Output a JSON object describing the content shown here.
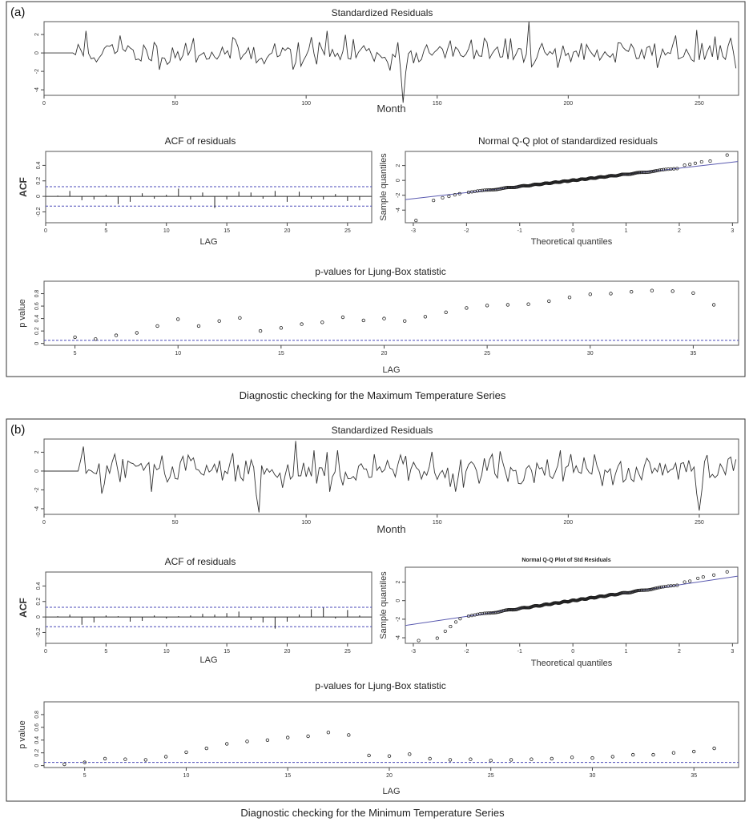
{
  "panels": [
    {
      "label": "(a)",
      "caption": "Diagnostic checking for the Maximum Temperature Series",
      "residuals_title": "Standardized Residuals",
      "acf_title": "ACF of residuals",
      "qq_title": "Normal Q-Q plot of standardized residuals",
      "lb_title": "p-values for Ljung-Box statistic"
    },
    {
      "label": "(b)",
      "caption": "Diagnostic checking for the  Minimum Temperature Series",
      "residuals_title": "Standardized Residuals",
      "acf_title": "ACF of residuals",
      "qq_title": "Normal Q-Q Plot of Std Residuals",
      "lb_title": "p-values for Ljung-Box statistic"
    }
  ],
  "chart_data": [
    {
      "id": "a-residuals",
      "type": "line",
      "title": "Standardized Residuals",
      "xlabel": "Month",
      "ylabel": "",
      "xlim": [
        0,
        265
      ],
      "ylim": [
        -4.6,
        3.4
      ],
      "xticks": [
        0,
        50,
        100,
        150,
        200,
        250
      ],
      "yticks": [
        -4,
        -2,
        0,
        2
      ],
      "n": 265,
      "flat_until": 12,
      "noise_sd": 0.72,
      "seed": 11,
      "spikes": [
        [
          16,
          2.4
        ],
        [
          29,
          1.9
        ],
        [
          57,
          1.6
        ],
        [
          95,
          -1.8
        ],
        [
          108,
          2.4
        ],
        [
          118,
          1.5
        ],
        [
          132,
          -1.9
        ],
        [
          137,
          -5.4
        ],
        [
          138,
          -2.1
        ],
        [
          168,
          1.6
        ],
        [
          185,
          3.4
        ],
        [
          186,
          -1.5
        ],
        [
          241,
          1.9
        ],
        [
          249,
          2.5
        ]
      ]
    },
    {
      "id": "a-acf",
      "type": "bar",
      "title": "ACF of residuals",
      "xlabel": "LAG",
      "ylabel": "ACF",
      "xlim": [
        0,
        27
      ],
      "ylim": [
        -0.34,
        0.58
      ],
      "xticks": [
        0,
        5,
        10,
        15,
        20,
        25
      ],
      "yticks": [
        -0.2,
        0.0,
        0.2,
        0.4
      ],
      "conf_band": 0.125,
      "lags": [
        1,
        2,
        3,
        4,
        5,
        6,
        7,
        8,
        9,
        10,
        11,
        12,
        13,
        14,
        15,
        16,
        17,
        18,
        19,
        20,
        21,
        22,
        23,
        24,
        25,
        26
      ],
      "values": [
        0.01,
        0.07,
        -0.05,
        -0.04,
        0.02,
        -0.1,
        -0.07,
        0.04,
        -0.03,
        0.02,
        0.1,
        -0.04,
        0.05,
        -0.15,
        -0.04,
        0.06,
        0.05,
        -0.03,
        0.07,
        -0.07,
        0.06,
        -0.03,
        -0.04,
        0.03,
        -0.06,
        -0.05
      ]
    },
    {
      "id": "a-qq",
      "type": "scatter",
      "title": "Normal Q-Q plot of standardized residuals",
      "xlabel": "Theoretical quantiles",
      "ylabel": "Sample quantiles",
      "xlim": [
        -3.15,
        3.1
      ],
      "ylim": [
        -5.7,
        3.9
      ],
      "xticks": [
        -3,
        -2,
        -1,
        0,
        1,
        2,
        3
      ],
      "yticks": [
        -4,
        -2,
        0,
        2
      ],
      "n": 260,
      "line": [
        0.0,
        0.82
      ],
      "low_tail": [
        [
          -2.95,
          -5.4
        ],
        [
          -2.62,
          -2.7
        ],
        [
          -2.45,
          -2.35
        ],
        [
          -2.33,
          -2.15
        ],
        [
          -2.22,
          -1.95
        ],
        [
          -2.13,
          -1.8
        ]
      ],
      "high_tail": [
        [
          2.1,
          2.05
        ],
        [
          2.2,
          2.15
        ],
        [
          2.3,
          2.3
        ],
        [
          2.42,
          2.5
        ],
        [
          2.58,
          2.6
        ],
        [
          2.9,
          3.4
        ]
      ]
    },
    {
      "id": "a-ljungbox",
      "type": "scatter",
      "title": "p-values for Ljung-Box statistic",
      "xlabel": "LAG",
      "ylabel": "p value",
      "xlim": [
        3.5,
        37.2
      ],
      "ylim": [
        -0.03,
        1.0
      ],
      "xticks": [
        5,
        10,
        15,
        20,
        25,
        30,
        35
      ],
      "yticks": [
        0.0,
        0.2,
        0.4,
        0.6,
        0.8
      ],
      "ref_line": 0.05,
      "x": [
        5,
        6,
        7,
        8,
        9,
        10,
        11,
        12,
        13,
        14,
        15,
        16,
        17,
        18,
        19,
        20,
        21,
        22,
        23,
        24,
        25,
        26,
        27,
        28,
        29,
        30,
        31,
        32,
        33,
        34,
        35,
        36
      ],
      "values": [
        0.1,
        0.07,
        0.13,
        0.17,
        0.28,
        0.39,
        0.28,
        0.36,
        0.41,
        0.2,
        0.25,
        0.31,
        0.34,
        0.42,
        0.37,
        0.4,
        0.36,
        0.43,
        0.5,
        0.57,
        0.61,
        0.62,
        0.63,
        0.68,
        0.74,
        0.79,
        0.8,
        0.83,
        0.85,
        0.84,
        0.81,
        0.62
      ]
    },
    {
      "id": "b-residuals",
      "type": "line",
      "title": "Standardized Residuals",
      "xlabel": "Month",
      "ylabel": "",
      "xlim": [
        0,
        265
      ],
      "ylim": [
        -4.6,
        3.4
      ],
      "xticks": [
        0,
        50,
        100,
        150,
        200,
        250
      ],
      "yticks": [
        -4,
        -2,
        0,
        2
      ],
      "n": 265,
      "flat_until": 14,
      "noise_sd": 0.85,
      "seed": 29,
      "spikes": [
        [
          15,
          2.6
        ],
        [
          22,
          -2.4
        ],
        [
          27,
          1.8
        ],
        [
          55,
          1.7
        ],
        [
          81,
          -2.6
        ],
        [
          82,
          -4.4
        ],
        [
          96,
          3.2
        ],
        [
          103,
          2.2
        ],
        [
          138,
          1.6
        ],
        [
          171,
          1.8
        ],
        [
          249,
          -2.4
        ],
        [
          250,
          -4.2
        ],
        [
          251,
          -2.0
        ],
        [
          253,
          1.7
        ]
      ]
    },
    {
      "id": "b-acf",
      "type": "bar",
      "title": "ACF of residuals",
      "xlabel": "LAG",
      "ylabel": "ACF",
      "xlim": [
        0,
        27
      ],
      "ylim": [
        -0.34,
        0.58
      ],
      "xticks": [
        0,
        5,
        10,
        15,
        20,
        25
      ],
      "yticks": [
        -0.2,
        0.0,
        0.2,
        0.4
      ],
      "conf_band": 0.125,
      "lags": [
        1,
        2,
        3,
        4,
        5,
        6,
        7,
        8,
        9,
        10,
        11,
        12,
        13,
        14,
        15,
        16,
        17,
        18,
        19,
        20,
        21,
        22,
        23,
        24,
        25,
        26
      ],
      "values": [
        0.01,
        0.03,
        -0.1,
        -0.07,
        0.02,
        0.01,
        -0.06,
        -0.05,
        0.02,
        -0.02,
        0.01,
        0.02,
        0.04,
        0.03,
        0.05,
        0.07,
        -0.04,
        -0.07,
        -0.15,
        -0.06,
        0.03,
        0.1,
        0.12,
        -0.02,
        0.09,
        0.02
      ]
    },
    {
      "id": "b-qq",
      "type": "scatter",
      "title": "Normal Q-Q Plot of Std Residuals",
      "xlabel": "Theoretical quantiles",
      "ylabel": "Sample quantiles",
      "xlim": [
        -3.15,
        3.1
      ],
      "ylim": [
        -4.6,
        3.6
      ],
      "xticks": [
        -3,
        -2,
        -1,
        0,
        1,
        2,
        3
      ],
      "yticks": [
        -4,
        -2,
        0,
        2
      ],
      "n": 260,
      "line": [
        0.0,
        0.85
      ],
      "low_tail": [
        [
          -2.9,
          -4.3
        ],
        [
          -2.55,
          -4.05
        ],
        [
          -2.4,
          -3.3
        ],
        [
          -2.3,
          -2.8
        ],
        [
          -2.2,
          -2.3
        ],
        [
          -2.12,
          -1.95
        ]
      ],
      "high_tail": [
        [
          2.1,
          2.0
        ],
        [
          2.2,
          2.1
        ],
        [
          2.35,
          2.4
        ],
        [
          2.45,
          2.55
        ],
        [
          2.65,
          2.75
        ],
        [
          2.9,
          3.1
        ]
      ]
    },
    {
      "id": "b-ljungbox",
      "type": "scatter",
      "title": "p-values for Ljung-Box statistic",
      "xlabel": "LAG",
      "ylabel": "p value",
      "xlim": [
        3.0,
        37.2
      ],
      "ylim": [
        -0.03,
        1.0
      ],
      "xticks": [
        5,
        10,
        15,
        20,
        25,
        30,
        35
      ],
      "yticks": [
        0.0,
        0.2,
        0.4,
        0.6,
        0.8
      ],
      "ref_line": 0.05,
      "x": [
        4,
        5,
        6,
        7,
        8,
        9,
        10,
        11,
        12,
        13,
        14,
        15,
        16,
        17,
        18,
        19,
        20,
        21,
        22,
        23,
        24,
        25,
        26,
        27,
        28,
        29,
        30,
        31,
        32,
        33,
        34,
        35,
        36
      ],
      "values": [
        0.02,
        0.05,
        0.11,
        0.1,
        0.09,
        0.14,
        0.21,
        0.27,
        0.34,
        0.38,
        0.4,
        0.44,
        0.46,
        0.52,
        0.48,
        0.16,
        0.15,
        0.18,
        0.11,
        0.09,
        0.1,
        0.08,
        0.09,
        0.1,
        0.11,
        0.13,
        0.12,
        0.14,
        0.17,
        0.17,
        0.2,
        0.22,
        0.27
      ]
    }
  ]
}
